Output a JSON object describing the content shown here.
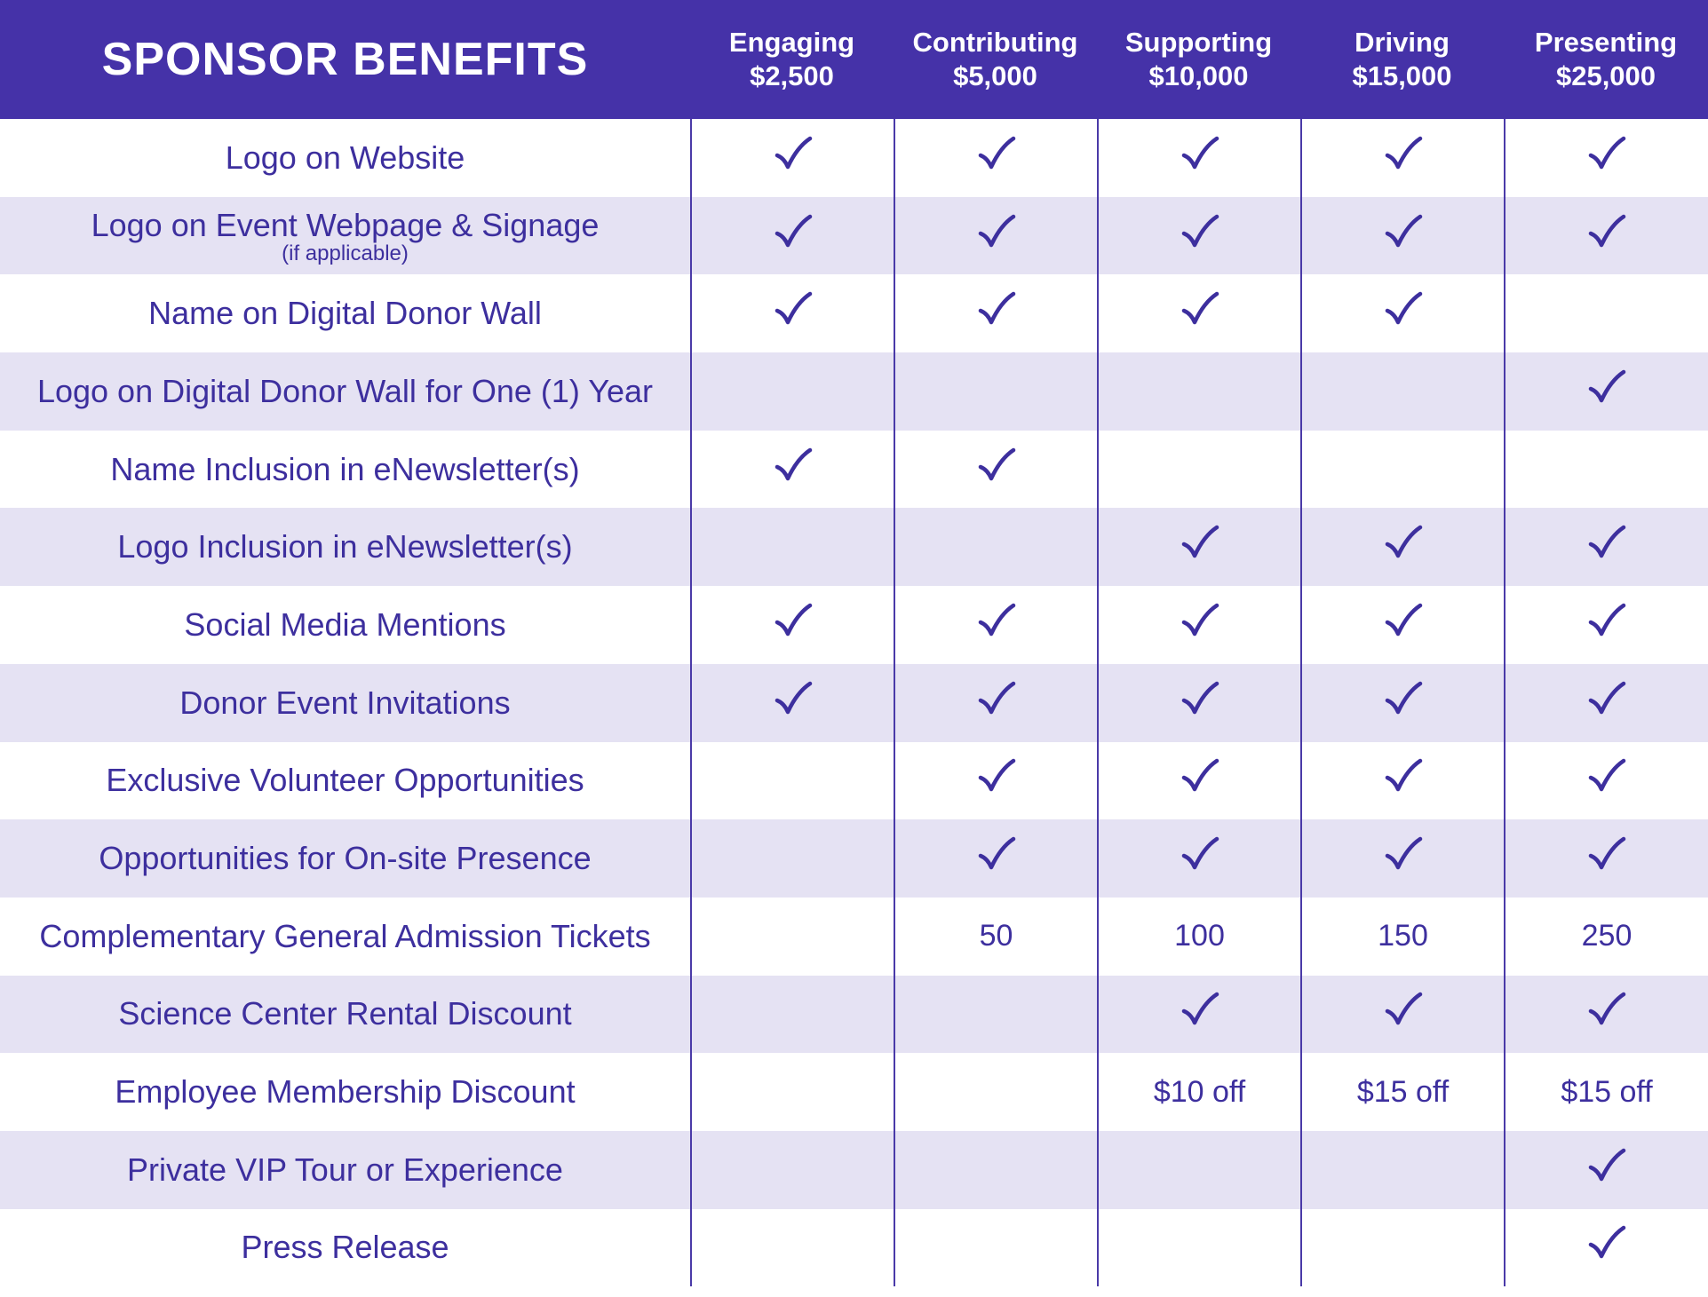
{
  "header": {
    "title": "SPONSOR BENEFITS",
    "tiers": [
      {
        "name": "Engaging",
        "amount": "$2,500"
      },
      {
        "name": "Contributing",
        "amount": "$5,000"
      },
      {
        "name": "Supporting",
        "amount": "$10,000"
      },
      {
        "name": "Driving",
        "amount": "$15,000"
      },
      {
        "name": "Presenting",
        "amount": "$25,000"
      }
    ]
  },
  "colors": {
    "header_bg": "#4532a8",
    "alt_row_bg": "#e5e2f3",
    "text": "#3d2f9e"
  },
  "icons": {
    "check": "check-icon"
  },
  "rows": [
    {
      "label": "Logo on Website",
      "sub": "",
      "cells": [
        "check",
        "check",
        "check",
        "check",
        "check"
      ]
    },
    {
      "label": "Logo on Event Webpage & Signage",
      "sub": "(if applicable)",
      "cells": [
        "check",
        "check",
        "check",
        "check",
        "check"
      ]
    },
    {
      "label": "Name on Digital Donor Wall",
      "sub": "",
      "cells": [
        "check",
        "check",
        "check",
        "check",
        ""
      ]
    },
    {
      "label": "Logo on Digital Donor Wall for One (1) Year",
      "sub": "",
      "cells": [
        "",
        "",
        "",
        "",
        "check"
      ]
    },
    {
      "label": "Name Inclusion in eNewsletter(s)",
      "sub": "",
      "cells": [
        "check",
        "check",
        "",
        "",
        ""
      ]
    },
    {
      "label": "Logo Inclusion in eNewsletter(s)",
      "sub": "",
      "cells": [
        "",
        "",
        "check",
        "check",
        "check"
      ]
    },
    {
      "label": "Social Media Mentions",
      "sub": "",
      "cells": [
        "check",
        "check",
        "check",
        "check",
        "check"
      ]
    },
    {
      "label": "Donor Event Invitations",
      "sub": "",
      "cells": [
        "check",
        "check",
        "check",
        "check",
        "check"
      ]
    },
    {
      "label": "Exclusive Volunteer Opportunities",
      "sub": "",
      "cells": [
        "",
        "check",
        "check",
        "check",
        "check"
      ]
    },
    {
      "label": "Opportunities for On-site Presence",
      "sub": "",
      "cells": [
        "",
        "check",
        "check",
        "check",
        "check"
      ]
    },
    {
      "label": "Complementary General Admission Tickets",
      "sub": "",
      "cells": [
        "",
        "50",
        "100",
        "150",
        "250"
      ]
    },
    {
      "label": "Science Center Rental Discount",
      "sub": "",
      "cells": [
        "",
        "",
        "check",
        "check",
        "check"
      ]
    },
    {
      "label": "Employee Membership Discount",
      "sub": "",
      "cells": [
        "",
        "",
        "$10 off",
        "$15 off",
        "$15 off"
      ]
    },
    {
      "label": "Private VIP Tour or Experience",
      "sub": "",
      "cells": [
        "",
        "",
        "",
        "",
        "check"
      ]
    },
    {
      "label": "Press Release",
      "sub": "",
      "cells": [
        "",
        "",
        "",
        "",
        "check"
      ]
    }
  ]
}
